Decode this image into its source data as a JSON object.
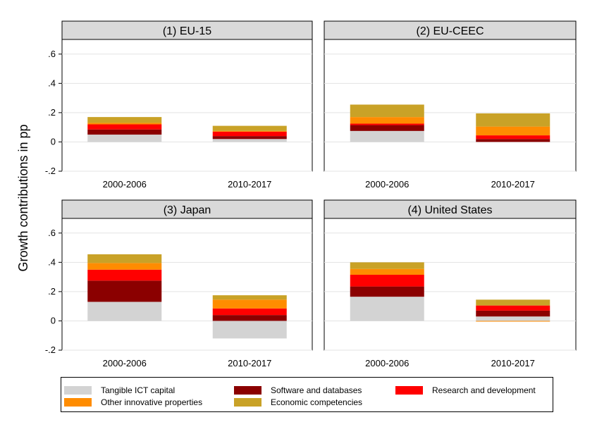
{
  "chart_data": {
    "type": "bar",
    "stacked": true,
    "ylabel": "Growth contributions in pp",
    "ylim": [
      -0.2,
      0.7
    ],
    "yticks": [
      -0.2,
      0,
      0.2,
      0.4,
      0.6
    ],
    "ytick_labels": [
      "-.2",
      "0",
      ".2",
      ".4",
      ".6"
    ],
    "grid": true,
    "legend_position": "bottom",
    "categories": [
      "2000-2006",
      "2010-2017"
    ],
    "series": [
      {
        "name": "Tangible ICT capital",
        "color": "#d3d3d3"
      },
      {
        "name": "Software and databases",
        "color": "#8b0000"
      },
      {
        "name": "Research and development",
        "color": "#ff0000"
      },
      {
        "name": "Other innovative properties",
        "color": "#ff8c00"
      },
      {
        "name": "Economic competencies",
        "color": "#c9a227"
      }
    ],
    "panels": [
      {
        "title": "(1) EU-15",
        "values": [
          [
            0.05,
            0.035,
            0.035,
            0.01,
            0.04
          ],
          [
            0.02,
            0.02,
            0.03,
            0.005,
            0.035
          ]
        ]
      },
      {
        "title": "(2) EU-CEEC",
        "values": [
          [
            0.075,
            0.04,
            0.01,
            0.045,
            0.085
          ],
          [
            0.0,
            0.02,
            0.025,
            0.06,
            0.09
          ]
        ]
      },
      {
        "title": "(3) Japan",
        "values": [
          [
            0.13,
            0.145,
            0.075,
            0.045,
            0.06
          ],
          [
            -0.12,
            0.04,
            0.045,
            0.06,
            0.03
          ]
        ]
      },
      {
        "title": "(4) United States",
        "values": [
          [
            0.165,
            0.07,
            0.08,
            0.04,
            0.045
          ],
          [
            0.03,
            0.04,
            0.035,
            -0.005,
            0.04
          ]
        ]
      }
    ]
  }
}
